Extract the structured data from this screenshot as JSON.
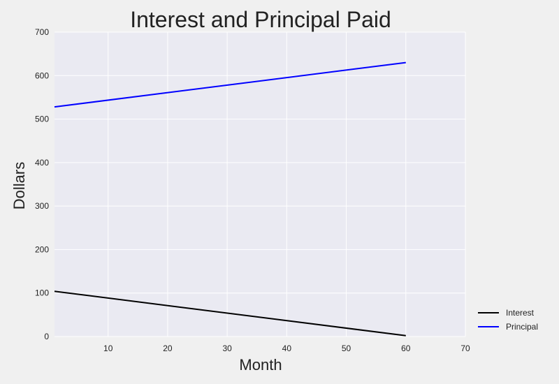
{
  "chart_data": {
    "type": "line",
    "title": "Interest and Principal Paid",
    "xlabel": "Month",
    "ylabel": "Dollars",
    "xlim": [
      1,
      70
    ],
    "ylim": [
      0,
      700
    ],
    "xticks": [
      10,
      20,
      30,
      40,
      50,
      60,
      70
    ],
    "yticks": [
      0,
      100,
      200,
      300,
      400,
      500,
      600,
      700
    ],
    "grid": true,
    "legend_position": "lower-right-outside",
    "colors": {
      "plot_background": "#eaeaf2",
      "page_background": "#f0f0f0",
      "grid": "#ffffff"
    },
    "series": [
      {
        "name": "Interest",
        "color": "#000000",
        "x": [
          1,
          60
        ],
        "y": [
          104,
          2
        ]
      },
      {
        "name": "Principal",
        "color": "#0000ff",
        "x": [
          1,
          60
        ],
        "y": [
          528,
          630
        ]
      }
    ]
  }
}
